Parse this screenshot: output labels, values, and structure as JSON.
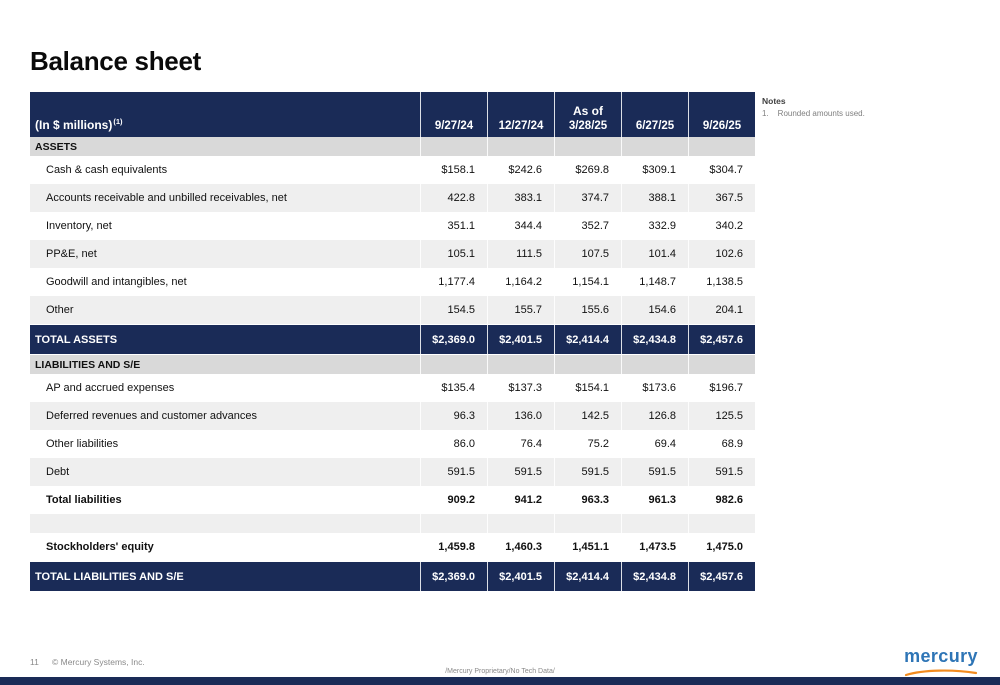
{
  "slide": {
    "title": "Balance sheet",
    "footer": {
      "page_number": "11",
      "copyright": "© Mercury Systems, Inc.",
      "proprietary": "/Mercury Proprietary/No Tech Data/"
    },
    "logo": {
      "text": "mercury"
    }
  },
  "notes": {
    "title": "Notes",
    "items": [
      {
        "num": "1.",
        "text": "Rounded amounts used."
      }
    ]
  },
  "table": {
    "unit_label": "(In $ millions)",
    "unit_footnote": "(1)",
    "as_of": "As of",
    "date_columns": [
      "9/27/24",
      "12/27/24",
      "3/28/25",
      "6/27/25",
      "9/26/25"
    ],
    "rows": [
      {
        "type": "section",
        "label": "ASSETS"
      },
      {
        "type": "data",
        "shade": "white",
        "label": "Cash & cash equivalents",
        "values": [
          "$158.1",
          "$242.6",
          "$269.8",
          "$309.1",
          "$304.7"
        ]
      },
      {
        "type": "data",
        "shade": "gray",
        "label": "Accounts receivable and unbilled receivables, net",
        "values": [
          "422.8",
          "383.1",
          "374.7",
          "388.1",
          "367.5"
        ]
      },
      {
        "type": "data",
        "shade": "white",
        "label": "Inventory, net",
        "values": [
          "351.1",
          "344.4",
          "352.7",
          "332.9",
          "340.2"
        ]
      },
      {
        "type": "data",
        "shade": "gray",
        "label": "PP&E, net",
        "values": [
          "105.1",
          "111.5",
          "107.5",
          "101.4",
          "102.6"
        ]
      },
      {
        "type": "data",
        "shade": "white",
        "label": "Goodwill and intangibles, net",
        "values": [
          "1,177.4",
          "1,164.2",
          "1,154.1",
          "1,148.7",
          "1,138.5"
        ]
      },
      {
        "type": "data",
        "shade": "gray",
        "label": "Other",
        "values": [
          "154.5",
          "155.7",
          "155.6",
          "154.6",
          "204.1"
        ]
      },
      {
        "type": "total",
        "label": "TOTAL ASSETS",
        "values": [
          "$2,369.0",
          "$2,401.5",
          "$2,414.4",
          "$2,434.8",
          "$2,457.6"
        ]
      },
      {
        "type": "section",
        "label": "LIABILITIES AND S/E"
      },
      {
        "type": "data",
        "shade": "white",
        "label": "AP and accrued expenses",
        "values": [
          "$135.4",
          "$137.3",
          "$154.1",
          "$173.6",
          "$196.7"
        ]
      },
      {
        "type": "data",
        "shade": "gray",
        "label": "Deferred revenues and customer advances",
        "values": [
          "96.3",
          "136.0",
          "142.5",
          "126.8",
          "125.5"
        ]
      },
      {
        "type": "data",
        "shade": "white",
        "label": "Other liabilities",
        "values": [
          "86.0",
          "76.4",
          "75.2",
          "69.4",
          "68.9"
        ]
      },
      {
        "type": "data",
        "shade": "gray",
        "label": "Debt",
        "values": [
          "591.5",
          "591.5",
          "591.5",
          "591.5",
          "591.5"
        ]
      },
      {
        "type": "subtotal",
        "shade": "white",
        "label": "Total liabilities",
        "values": [
          "909.2",
          "941.2",
          "963.3",
          "961.3",
          "982.6"
        ]
      },
      {
        "type": "blank",
        "shade": "gray",
        "label": "",
        "values": [
          "",
          "",
          "",
          "",
          ""
        ]
      },
      {
        "type": "subtotal",
        "shade": "white",
        "label": "Stockholders' equity",
        "values": [
          "1,459.8",
          "1,460.3",
          "1,451.1",
          "1,473.5",
          "1,475.0"
        ]
      },
      {
        "type": "total",
        "label": "TOTAL LIABILITIES AND S/E",
        "values": [
          "$2,369.0",
          "$2,401.5",
          "$2,414.4",
          "$2,434.8",
          "$2,457.6"
        ]
      }
    ]
  },
  "colors": {
    "navy": "#1a2b57",
    "section_gray": "#d9d9d9",
    "stripe_gray": "#efefef",
    "logo_blue": "#2e75b6",
    "logo_orange": "#f28b1e"
  }
}
